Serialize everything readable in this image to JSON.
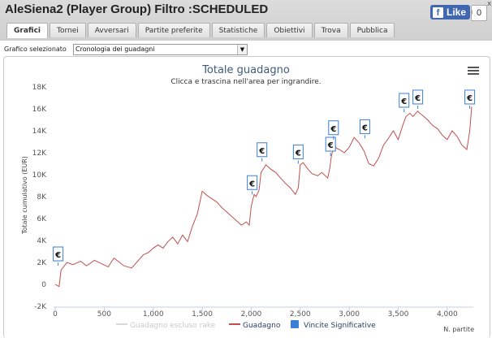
{
  "header": {
    "title": "AleSiena2 (Player Group) Filtro :SCHEDULED",
    "like_label": "Like",
    "like_count": "0",
    "corner": "x"
  },
  "tabs": [
    {
      "label": "Grafici",
      "active": true
    },
    {
      "label": "Tornei",
      "active": false
    },
    {
      "label": "Avversari",
      "active": false
    },
    {
      "label": "Partite preferite",
      "active": false
    },
    {
      "label": "Statistiche",
      "active": false
    },
    {
      "label": "Obiettivi",
      "active": false
    },
    {
      "label": "Trova",
      "active": false
    },
    {
      "label": "Pubblica",
      "active": false
    }
  ],
  "selector": {
    "label": "Grafico selezionato",
    "value": "Cronologia dei guadagni"
  },
  "chart_data": {
    "type": "line",
    "title": "Totale guadagno",
    "subtitle": "Clicca e trascina nell'area per ingrandire.",
    "ylabel": "Totale cumulativo (EUR)",
    "xlabel": "N. partite",
    "xlim": [
      0,
      4250
    ],
    "ylim": [
      -2000,
      18000
    ],
    "x_ticks": [
      0,
      500,
      1000,
      1500,
      2000,
      2500,
      3000,
      3500,
      4000
    ],
    "x_tick_labels": [
      "0",
      "500",
      "1,000",
      "1,500",
      "2,000",
      "2,500",
      "3,000",
      "3,500",
      "4,000"
    ],
    "y_ticks": [
      -2000,
      0,
      2000,
      4000,
      6000,
      8000,
      10000,
      12000,
      14000,
      16000,
      18000
    ],
    "y_tick_labels": [
      "-2K",
      "0",
      "2K",
      "4K",
      "6K",
      "8K",
      "10K",
      "12K",
      "14K",
      "16K",
      "18K"
    ],
    "grid": false,
    "legend_position": "bottom",
    "legend": [
      {
        "name": "Guadagno escluso rake",
        "color": "#d8d8d8",
        "kind": "line"
      },
      {
        "name": "Guadagno",
        "color": "#c0504d",
        "kind": "line"
      },
      {
        "name": "Vincite Significative",
        "color": "#3a7fd5",
        "kind": "box"
      }
    ],
    "series": [
      {
        "name": "Guadagno",
        "color": "#c0504d",
        "x": [
          0,
          40,
          60,
          120,
          180,
          260,
          320,
          400,
          470,
          540,
          600,
          700,
          780,
          850,
          900,
          950,
          1000,
          1050,
          1100,
          1150,
          1200,
          1250,
          1300,
          1350,
          1400,
          1450,
          1500,
          1550,
          1600,
          1650,
          1700,
          1750,
          1800,
          1850,
          1900,
          1950,
          1980,
          2000,
          2030,
          2050,
          2080,
          2100,
          2130,
          2150,
          2200,
          2250,
          2300,
          2350,
          2400,
          2450,
          2480,
          2500,
          2530,
          2580,
          2620,
          2680,
          2720,
          2780,
          2800,
          2820,
          2850,
          2870,
          2900,
          2950,
          3000,
          3050,
          3100,
          3150,
          3200,
          3250,
          3300,
          3350,
          3400,
          3450,
          3500,
          3550,
          3580,
          3620,
          3650,
          3700,
          3720,
          3750,
          3800,
          3850,
          3900,
          3950,
          4000,
          4050,
          4100,
          4150,
          4200,
          4230,
          4250
        ],
        "y": [
          0,
          -200,
          1300,
          2000,
          1800,
          2100,
          1700,
          2200,
          1900,
          1600,
          2400,
          1700,
          1500,
          2200,
          2700,
          2900,
          3300,
          3600,
          3300,
          3900,
          4300,
          3700,
          4500,
          3900,
          5300,
          6400,
          8500,
          8100,
          7800,
          7500,
          7000,
          6600,
          6200,
          5800,
          5400,
          5700,
          5400,
          7100,
          8200,
          8000,
          8600,
          10200,
          10600,
          10900,
          10500,
          10200,
          9700,
          9200,
          8800,
          8200,
          8800,
          10900,
          11100,
          10500,
          10100,
          9900,
          10200,
          9700,
          10500,
          11800,
          12700,
          12400,
          12300,
          12000,
          12500,
          13400,
          12900,
          12200,
          11000,
          10800,
          11500,
          12700,
          13300,
          14000,
          13200,
          14600,
          15300,
          15600,
          15300,
          15800,
          15600,
          15400,
          15000,
          14500,
          14200,
          13600,
          13200,
          14000,
          13500,
          12700,
          12300,
          14000,
          16200
        ]
      }
    ],
    "markers": {
      "name": "Vincite Significative",
      "symbol": "€",
      "x": [
        30,
        2010,
        2110,
        2480,
        2810,
        2840,
        3160,
        3560,
        3700,
        4230
      ],
      "y": [
        2000,
        8500,
        11500,
        11300,
        12000,
        13500,
        13600,
        16000,
        16300,
        16300
      ]
    }
  }
}
